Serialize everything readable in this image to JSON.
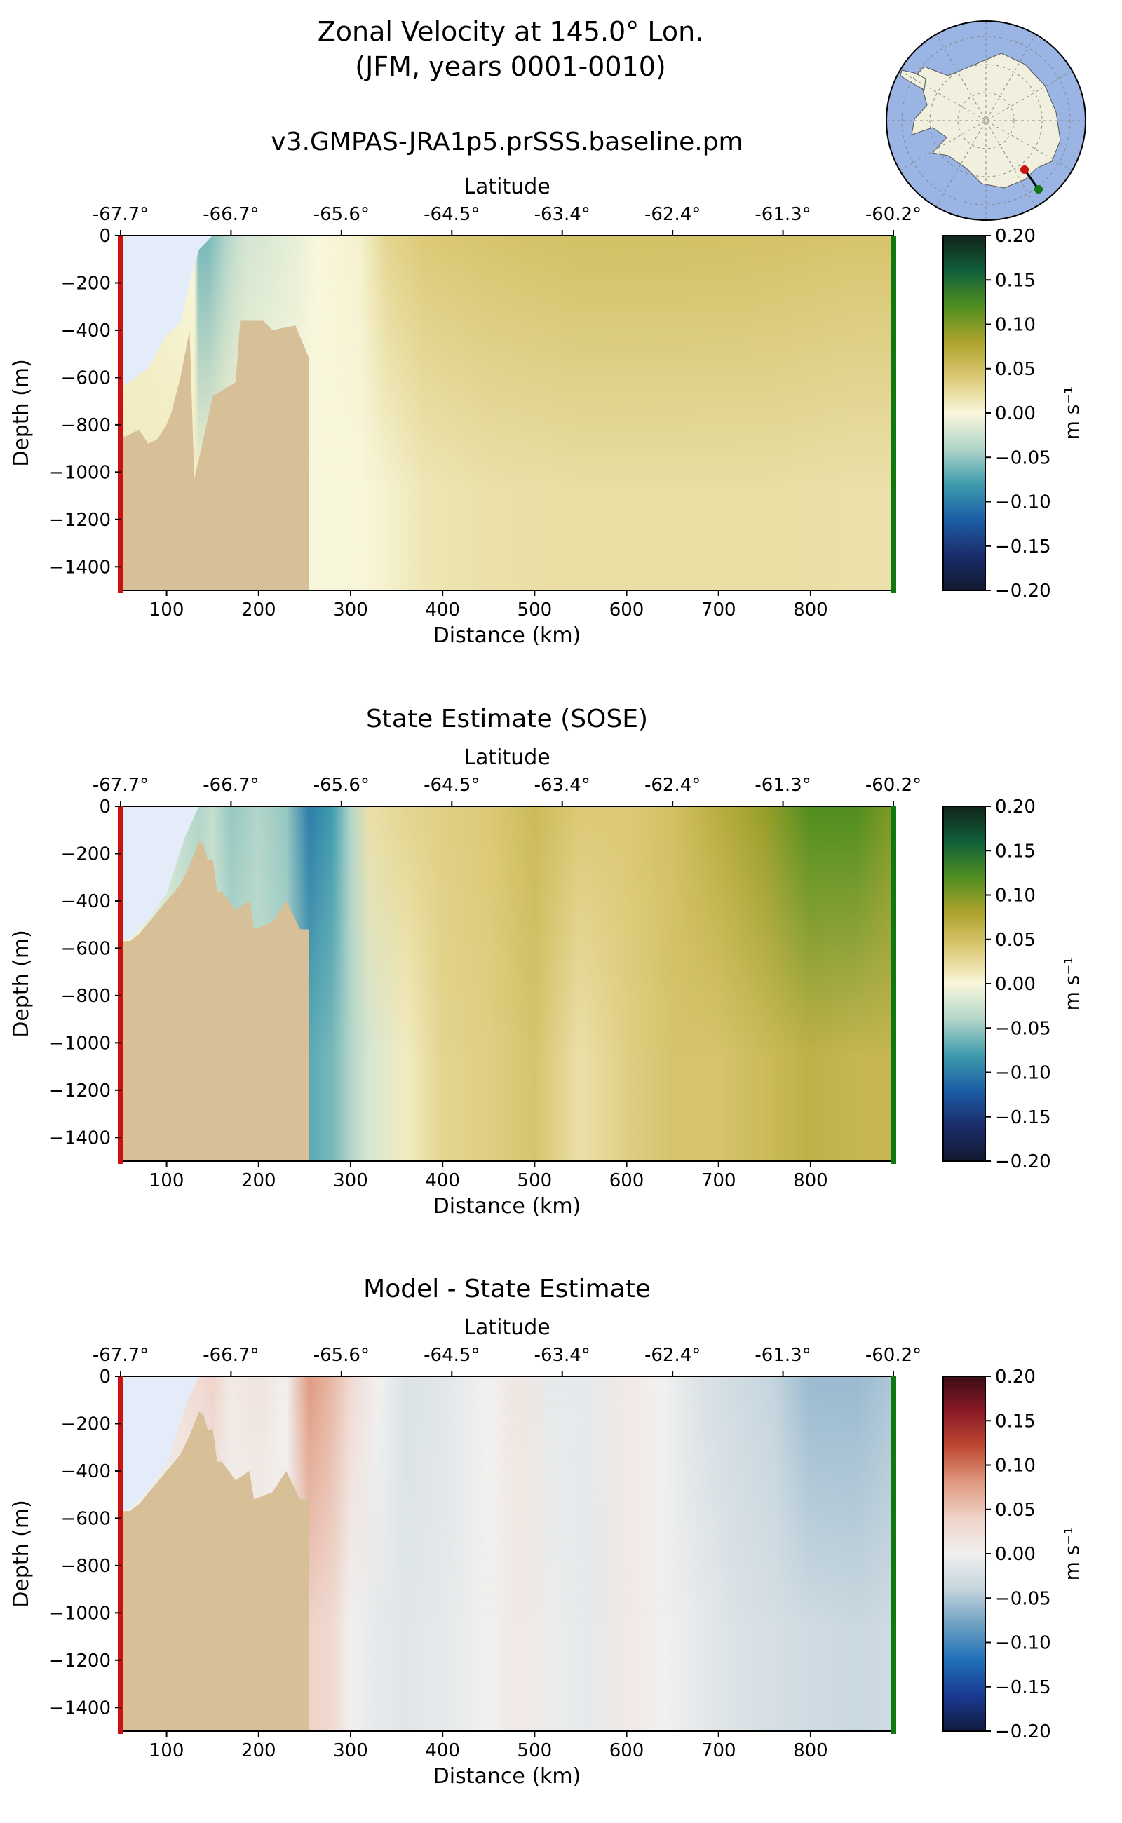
{
  "figure": {
    "title_line1": "Zonal Velocity at 145.0° Lon.",
    "title_line2": "(JFM, years 0001-0010)"
  },
  "colors": {
    "ice_water": "#e3ecf8",
    "bathymetry": "#d7bf97",
    "start_marker": "#cc1111",
    "end_marker": "#117711",
    "map_ocean": "#9ab5e3",
    "map_land": "#f1f0df"
  },
  "inset_map": {
    "type": "south-polar-stereographic",
    "section_line": "start red dot, end green dot"
  },
  "chart_data": [
    {
      "type": "heatmap",
      "title": "v3.GMPAS-JRA1p5.prSSS.baseline.pm",
      "xlabel": "Distance (km)",
      "ylabel": "Depth (m)",
      "secondary_xlabel": "Latitude",
      "xlim": [
        50,
        890
      ],
      "ylim": [
        -1500,
        0
      ],
      "x_ticks": [
        100,
        200,
        300,
        400,
        500,
        600,
        700,
        800
      ],
      "y_ticks": [
        0,
        -200,
        -400,
        -600,
        -800,
        -1000,
        -1200,
        -1400
      ],
      "lat_ticks": [
        "-67.7°",
        "-66.7°",
        "-65.6°",
        "-64.5°",
        "-63.4°",
        "-62.4°",
        "-61.3°",
        "-60.2°"
      ],
      "lat_tick_km": [
        50,
        170,
        290,
        410,
        530,
        650,
        770,
        890
      ],
      "colorbar": {
        "label": "m s⁻¹",
        "colormap": "delta",
        "range": [
          -0.2,
          0.2
        ],
        "ticks": [
          "0.20",
          "0.15",
          "0.10",
          "0.05",
          "0.00",
          "−0.05",
          "−0.10",
          "−0.15",
          "−0.20"
        ]
      },
      "profile_km": [
        55,
        130,
        135,
        145,
        155,
        165,
        175,
        190,
        200,
        240,
        265,
        310,
        340,
        380,
        450,
        550,
        650,
        750,
        850,
        890
      ],
      "profile_surface": [
        0.01,
        0.0,
        -0.06,
        -0.06,
        -0.05,
        -0.04,
        -0.03,
        -0.02,
        -0.02,
        -0.01,
        0.0,
        0.005,
        0.03,
        0.04,
        0.045,
        0.05,
        0.05,
        0.048,
        0.045,
        0.045
      ],
      "profile_deep": [
        0.01,
        0.01,
        0.005,
        0.005,
        0.005,
        0.005,
        0.005,
        0.005,
        0.0,
        0.0,
        0.0,
        0.0,
        0.005,
        0.015,
        0.02,
        0.022,
        0.022,
        0.022,
        0.02,
        0.02
      ],
      "bathymetry_km": [
        50,
        55,
        70,
        80,
        90,
        100,
        105,
        115,
        125,
        130,
        140,
        150,
        175,
        180,
        205,
        215,
        240,
        255
      ],
      "bathymetry_depth": [
        -850,
        -850,
        -820,
        -880,
        -860,
        -800,
        -750,
        -600,
        -400,
        -1030,
        -860,
        -680,
        -620,
        -360,
        -360,
        -400,
        -380,
        -520
      ]
    },
    {
      "type": "heatmap",
      "title": "State Estimate (SOSE)",
      "xlabel": "Distance (km)",
      "ylabel": "Depth (m)",
      "secondary_xlabel": "Latitude",
      "xlim": [
        50,
        890
      ],
      "ylim": [
        -1500,
        0
      ],
      "x_ticks": [
        100,
        200,
        300,
        400,
        500,
        600,
        700,
        800
      ],
      "y_ticks": [
        0,
        -200,
        -400,
        -600,
        -800,
        -1000,
        -1200,
        -1400
      ],
      "lat_ticks": [
        "-67.7°",
        "-66.7°",
        "-65.6°",
        "-64.5°",
        "-63.4°",
        "-62.4°",
        "-61.3°",
        "-60.2°"
      ],
      "lat_tick_km": [
        50,
        170,
        290,
        410,
        530,
        650,
        770,
        890
      ],
      "colorbar": {
        "label": "m s⁻¹",
        "colormap": "delta",
        "range": [
          -0.2,
          0.2
        ],
        "ticks": [
          "0.20",
          "0.15",
          "0.10",
          "0.05",
          "0.00",
          "−0.05",
          "−0.10",
          "−0.15",
          "−0.20"
        ]
      },
      "profile_km": [
        55,
        135,
        150,
        170,
        200,
        230,
        255,
        280,
        300,
        320,
        360,
        400,
        450,
        500,
        550,
        600,
        650,
        700,
        750,
        800,
        850,
        890
      ],
      "profile_surface": [
        0.0,
        -0.04,
        -0.03,
        -0.05,
        -0.04,
        -0.05,
        -0.1,
        -0.08,
        -0.04,
        0.02,
        0.03,
        0.035,
        0.04,
        0.055,
        0.04,
        0.04,
        0.05,
        0.07,
        0.09,
        0.12,
        0.12,
        0.1
      ],
      "profile_deep": [
        0.0,
        -0.03,
        -0.02,
        -0.03,
        -0.03,
        -0.04,
        -0.07,
        -0.06,
        -0.04,
        -0.02,
        0.01,
        0.03,
        0.035,
        0.045,
        0.02,
        0.035,
        0.045,
        0.045,
        0.055,
        0.065,
        0.06,
        0.06
      ],
      "bathymetry_km": [
        50,
        60,
        70,
        85,
        100,
        115,
        125,
        135,
        140,
        145,
        150,
        155,
        160,
        175,
        190,
        195,
        215,
        230,
        245,
        255
      ],
      "bathymetry_depth": [
        -570,
        -570,
        -540,
        -470,
        -400,
        -330,
        -250,
        -150,
        -160,
        -230,
        -220,
        -360,
        -360,
        -440,
        -400,
        -520,
        -490,
        -400,
        -520,
        -520
      ]
    },
    {
      "type": "heatmap",
      "title": "Model - State Estimate",
      "xlabel": "Distance (km)",
      "ylabel": "Depth (m)",
      "secondary_xlabel": "Latitude",
      "xlim": [
        50,
        890
      ],
      "ylim": [
        -1500,
        0
      ],
      "x_ticks": [
        100,
        200,
        300,
        400,
        500,
        600,
        700,
        800
      ],
      "y_ticks": [
        0,
        -200,
        -400,
        -600,
        -800,
        -1000,
        -1200,
        -1400
      ],
      "lat_ticks": [
        "-67.7°",
        "-66.7°",
        "-65.6°",
        "-64.5°",
        "-63.4°",
        "-62.4°",
        "-61.3°",
        "-60.2°"
      ],
      "lat_tick_km": [
        50,
        170,
        290,
        410,
        530,
        650,
        770,
        890
      ],
      "colorbar": {
        "label": "m s⁻¹",
        "colormap": "balance",
        "range": [
          -0.2,
          0.2
        ],
        "ticks": [
          "0.20",
          "0.15",
          "0.10",
          "0.05",
          "0.00",
          "−0.05",
          "−0.10",
          "−0.15",
          "−0.20"
        ]
      },
      "profile_km": [
        55,
        135,
        150,
        170,
        200,
        230,
        255,
        280,
        300,
        330,
        360,
        400,
        450,
        480,
        520,
        560,
        600,
        640,
        680,
        720,
        760,
        800,
        850,
        890
      ],
      "profile_surface": [
        0.0,
        0.03,
        0.04,
        0.01,
        0.02,
        0.0,
        0.08,
        0.06,
        0.03,
        0.0,
        -0.02,
        -0.015,
        0.0,
        0.015,
        -0.01,
        -0.01,
        0.01,
        0.0,
        -0.02,
        -0.03,
        -0.04,
        -0.06,
        -0.06,
        -0.05
      ],
      "profile_deep": [
        0.0,
        0.0,
        0.0,
        0.0,
        0.0,
        0.0,
        0.04,
        0.03,
        0.0,
        -0.01,
        -0.015,
        -0.01,
        0.0,
        0.01,
        -0.005,
        -0.01,
        0.01,
        0.0,
        -0.01,
        -0.02,
        -0.025,
        -0.03,
        -0.035,
        -0.03
      ],
      "bathymetry_km": [
        50,
        60,
        70,
        85,
        100,
        115,
        125,
        135,
        140,
        145,
        150,
        155,
        160,
        175,
        190,
        195,
        215,
        230,
        245,
        255
      ],
      "bathymetry_depth": [
        -570,
        -570,
        -540,
        -470,
        -400,
        -330,
        -250,
        -150,
        -160,
        -230,
        -220,
        -360,
        -360,
        -440,
        -400,
        -520,
        -490,
        -400,
        -520,
        -520
      ]
    }
  ]
}
